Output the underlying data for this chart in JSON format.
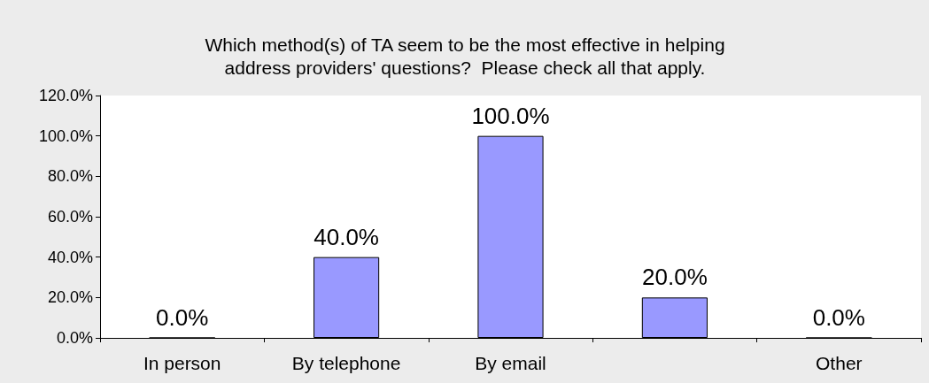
{
  "chart_data": {
    "type": "bar",
    "title": "Which method(s) of TA seem to be the most effective in helping\naddress providers' questions?  Please check all that apply.",
    "categories": [
      "In person",
      "By telephone",
      "By email",
      null,
      "Other"
    ],
    "values": [
      0,
      40,
      100,
      20,
      0
    ],
    "color": "#9999ff",
    "value_labels": [
      "0.0%",
      "40.0%",
      "100.0%",
      "20.0%",
      "0.0%"
    ],
    "ylim": [
      0,
      120
    ],
    "yticks": [
      {
        "value": 0,
        "label": "0.0%"
      },
      {
        "value": 20,
        "label": "20.0%"
      },
      {
        "value": 40,
        "label": "40.0%"
      },
      {
        "value": 60,
        "label": "60.0%"
      },
      {
        "value": 80,
        "label": "80.0%"
      },
      {
        "value": 100,
        "label": "100.0%"
      },
      {
        "value": 120,
        "label": "120.0%"
      }
    ]
  }
}
